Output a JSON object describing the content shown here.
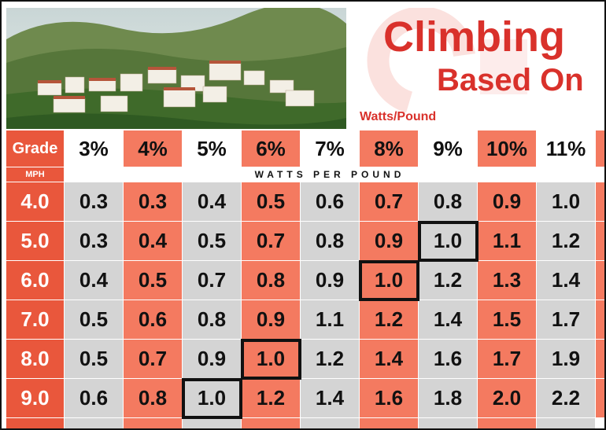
{
  "header": {
    "title_line1": "Climbing",
    "title_line2": "Based On",
    "subtitle": "Watts/Pound"
  },
  "table": {
    "corner": "Grade",
    "columns": [
      "3%",
      "4%",
      "5%",
      "6%",
      "7%",
      "8%",
      "9%",
      "10%",
      "11%"
    ],
    "unit_row_label": "MPH",
    "unit_label": "WATTS PER POUND",
    "rows": [
      {
        "mph": "4.0",
        "values": [
          "0.3",
          "0.3",
          "0.4",
          "0.5",
          "0.6",
          "0.7",
          "0.8",
          "0.9",
          "1.0"
        ]
      },
      {
        "mph": "5.0",
        "values": [
          "0.3",
          "0.4",
          "0.5",
          "0.7",
          "0.8",
          "0.9",
          "1.0",
          "1.1",
          "1.2"
        ]
      },
      {
        "mph": "6.0",
        "values": [
          "0.4",
          "0.5",
          "0.7",
          "0.8",
          "0.9",
          "1.0",
          "1.2",
          "1.3",
          "1.4"
        ]
      },
      {
        "mph": "7.0",
        "values": [
          "0.5",
          "0.6",
          "0.8",
          "0.9",
          "1.1",
          "1.2",
          "1.4",
          "1.5",
          "1.7"
        ]
      },
      {
        "mph": "8.0",
        "values": [
          "0.5",
          "0.7",
          "0.9",
          "1.0",
          "1.2",
          "1.4",
          "1.6",
          "1.7",
          "1.9"
        ]
      },
      {
        "mph": "9.0",
        "values": [
          "0.6",
          "0.8",
          "1.0",
          "1.2",
          "1.4",
          "1.6",
          "1.8",
          "2.0",
          "2.2"
        ]
      }
    ]
  }
}
